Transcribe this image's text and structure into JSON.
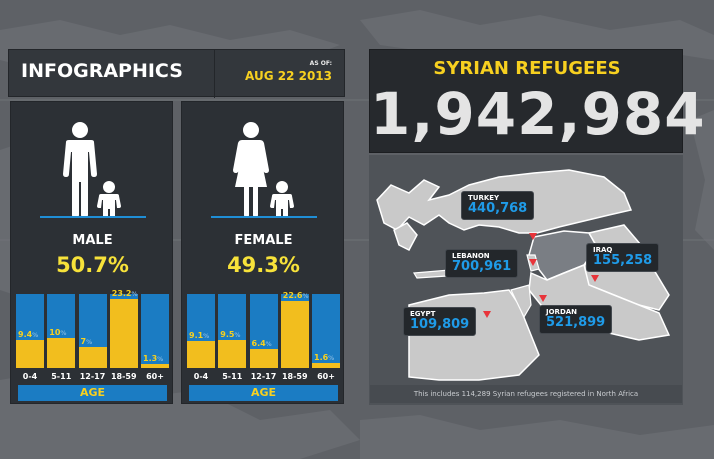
{
  "header": {
    "title": "INFOGRAPHICS",
    "asof_label": "AS OF:",
    "asof_date": "AUG 22 2013"
  },
  "male": {
    "label": "MALE",
    "percent": "50.7%",
    "bars": [
      {
        "cat": "0-4",
        "value": 9.4,
        "label_num": "9.4",
        "label_unit": "%"
      },
      {
        "cat": "5-11",
        "value": 10,
        "label_num": "10",
        "label_unit": "%"
      },
      {
        "cat": "12-17",
        "value": 7,
        "label_num": "7",
        "label_unit": "%"
      },
      {
        "cat": "18-59",
        "value": 23.2,
        "label_num": "23.2",
        "label_unit": "%"
      },
      {
        "cat": "60+",
        "value": 1.3,
        "label_num": "1.3",
        "label_unit": "%"
      }
    ],
    "age_label": "AGE"
  },
  "female": {
    "label": "FEMALE",
    "percent": "49.3%",
    "bars": [
      {
        "cat": "0-4",
        "value": 9.1,
        "label_num": "9.1",
        "label_unit": "%"
      },
      {
        "cat": "5-11",
        "value": 9.5,
        "label_num": "9.5",
        "label_unit": "%"
      },
      {
        "cat": "12-17",
        "value": 6.4,
        "label_num": "6.4",
        "label_unit": "%"
      },
      {
        "cat": "18-59",
        "value": 22.6,
        "label_num": "22.6",
        "label_unit": "%"
      },
      {
        "cat": "60+",
        "value": 1.6,
        "label_num": "1.6",
        "label_unit": "%"
      }
    ],
    "age_label": "AGE"
  },
  "refugees": {
    "title": "SYRIAN REFUGEES",
    "total": "1,942,984"
  },
  "countries": {
    "turkey": {
      "name": "TURKEY",
      "value": "440,768"
    },
    "lebanon": {
      "name": "LEBANON",
      "value": "700,961"
    },
    "iraq": {
      "name": "IRAQ",
      "value": "155,258"
    },
    "egypt": {
      "name": "EGYPT",
      "value": "109,809"
    },
    "jordan": {
      "name": "JORDAN",
      "value": "521,899"
    }
  },
  "footnote": "This includes 114,289 Syrian refugees registered in North Africa",
  "colors": {
    "bar_blue": "#1b7cc3",
    "bar_yellow": "#f2be1e",
    "accent_yellow": "#f7d020",
    "pin_red": "#e8343a",
    "value_blue": "#1f9be8"
  }
}
